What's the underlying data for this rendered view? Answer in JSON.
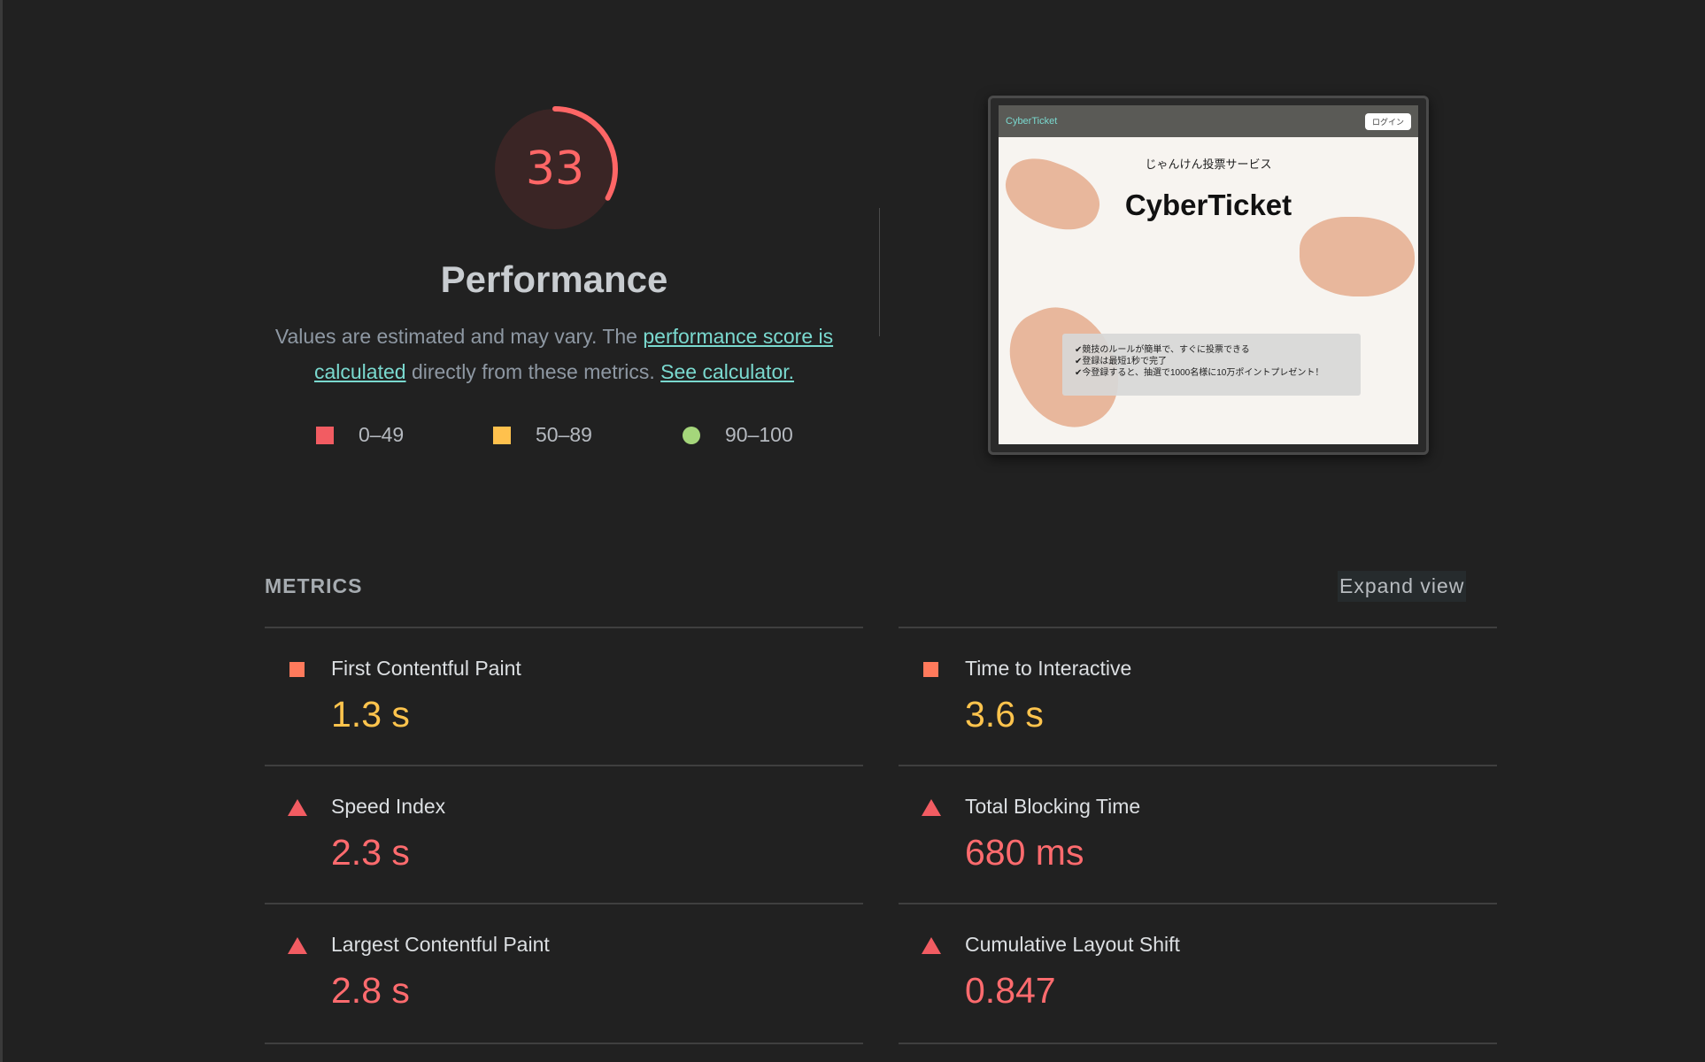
{
  "gauge": {
    "score": "33",
    "score_fraction": 0.33,
    "color": "#ff6666",
    "title": "Performance",
    "desc_part1": "Values are estimated and may vary. The ",
    "desc_link1": "performance score is calculated",
    "desc_part2": " directly from these metrics. ",
    "desc_link2": "See calculator."
  },
  "legend": {
    "red": "0–49",
    "orange": "50–89",
    "green": "90–100"
  },
  "screenshot": {
    "brand": "CyberTicket",
    "login": "ログイン",
    "subtitle": "じゃんけん投票サービス",
    "title": "CyberTicket",
    "lines": [
      "✔競技のルールが簡単で、すぐに投票できる",
      "✔登録は最短1秒で完了",
      "✔今登録すると、抽選で1000名様に10万ポイントプレゼント！"
    ]
  },
  "metrics": {
    "header": "METRICS",
    "expand_label": "Expand view",
    "items": [
      {
        "label": "First Contentful Paint",
        "value": "1.3 s",
        "status": "average"
      },
      {
        "label": "Time to Interactive",
        "value": "3.6 s",
        "status": "average"
      },
      {
        "label": "Speed Index",
        "value": "2.3 s",
        "status": "fail"
      },
      {
        "label": "Total Blocking Time",
        "value": "680 ms",
        "status": "fail"
      },
      {
        "label": "Largest Contentful Paint",
        "value": "2.8 s",
        "status": "fail"
      },
      {
        "label": "Cumulative Layout Shift",
        "value": "0.847",
        "status": "fail"
      }
    ]
  },
  "colors": {
    "background": "#212121",
    "fail": "#ff6b6e",
    "average": "#ffc44d",
    "pass": "#a5d67b",
    "link": "#7ad9cf"
  }
}
